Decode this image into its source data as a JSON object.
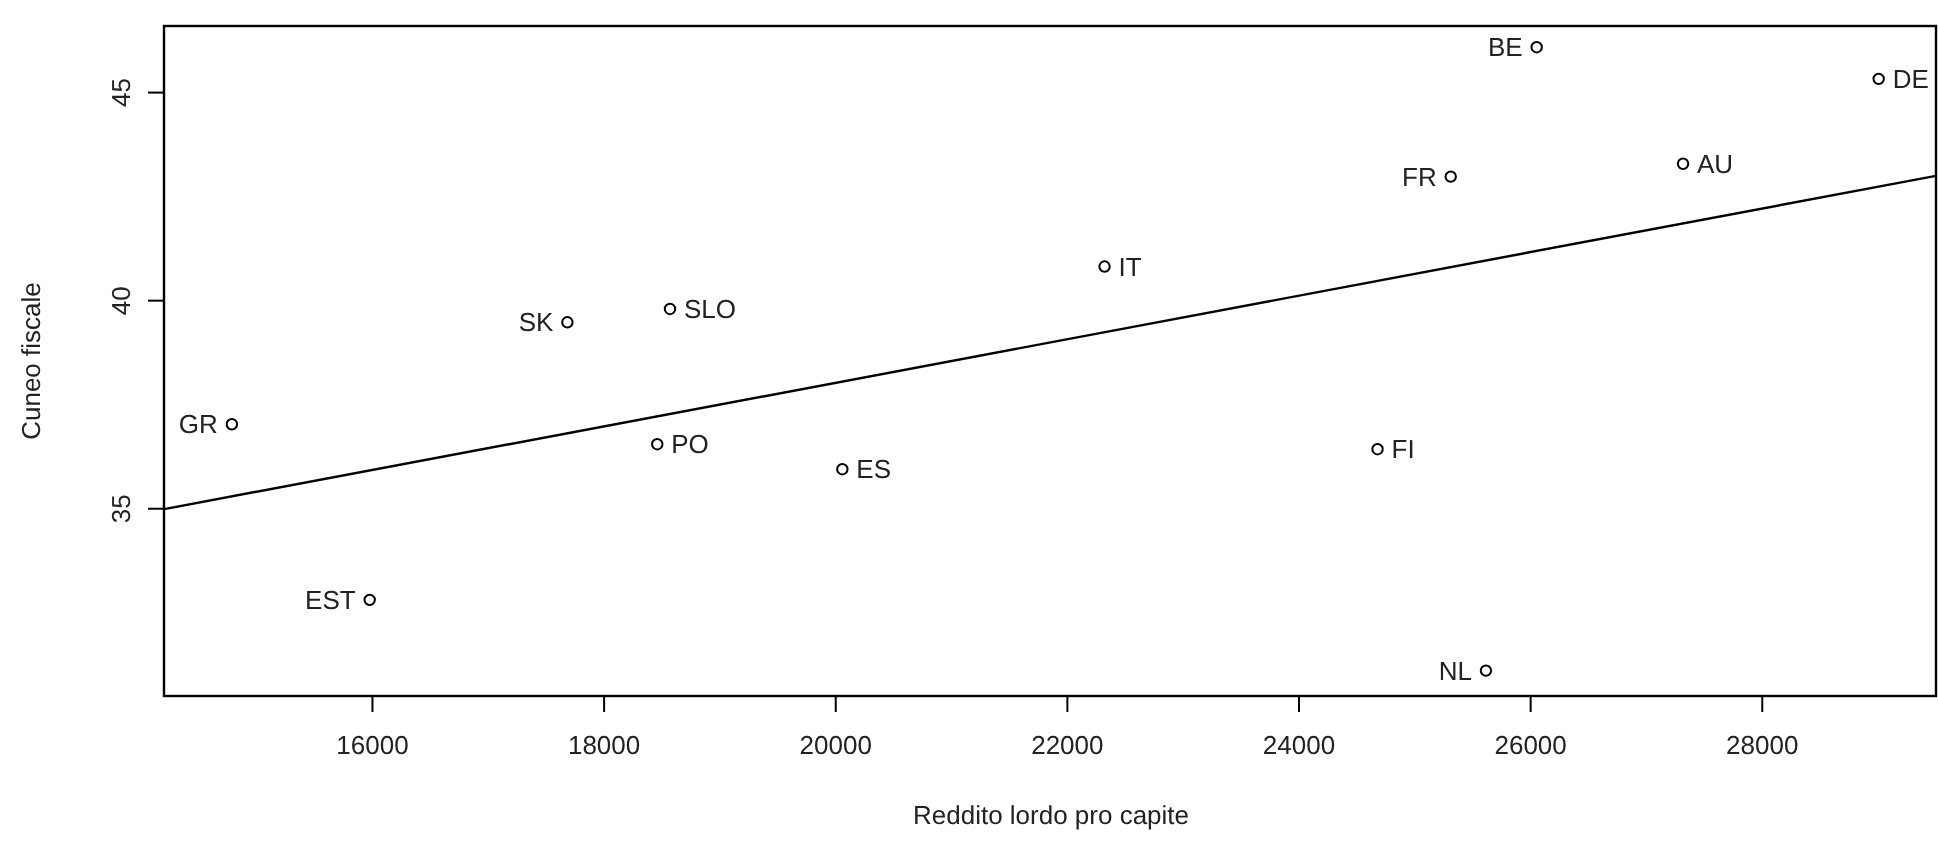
{
  "chart_data": {
    "type": "scatter",
    "xlabel": "Reddito lordo pro capite",
    "ylabel": "Cuneo fiscale",
    "xlim": [
      14200,
      29500
    ],
    "ylim": [
      30.5,
      46.6
    ],
    "xticks": [
      16000,
      18000,
      20000,
      22000,
      24000,
      26000,
      28000
    ],
    "yticks": [
      35,
      40,
      45
    ],
    "grid": false,
    "series": [
      {
        "color": "#000000",
        "marker": "circle",
        "x": [
          14786,
          17683,
          18569,
          18459,
          20057,
          15976,
          22321,
          24678,
          25614,
          25310,
          26052,
          27316,
          29005
        ],
        "values": [
          37.03,
          39.48,
          39.8,
          36.55,
          35.95,
          32.81,
          40.82,
          36.43,
          31.11,
          42.98,
          46.09,
          43.29,
          45.33
        ],
        "value_labels": [
          "GR",
          "SK",
          "SLO",
          "PO",
          "ES",
          "EST",
          "IT",
          "FI",
          "NL",
          "FR",
          "BE",
          "AU",
          "DE"
        ]
      },
      {
        "type": "line",
        "color": "#000000",
        "x": [
          14200,
          29500
        ],
        "values": [
          34.99,
          43.0
        ],
        "line_style": "solid",
        "marker": "none"
      }
    ]
  }
}
